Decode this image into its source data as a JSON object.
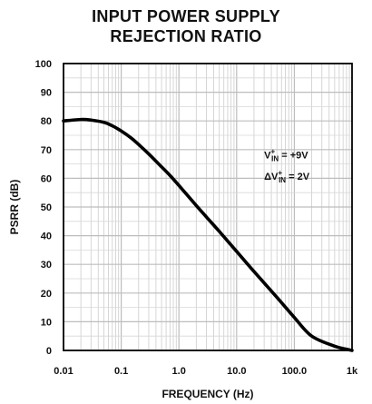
{
  "chart_data": {
    "type": "line",
    "title_lines": [
      "INPUT POWER SUPPLY",
      "REJECTION RATIO"
    ],
    "xlabel": "FREQUENCY (Hz)",
    "ylabel": "PSRR (dB)",
    "x_scale": "log",
    "xlim": [
      0.01,
      1000
    ],
    "ylim": [
      0,
      100
    ],
    "x_ticks": [
      {
        "value": 0.01,
        "label": "0.01"
      },
      {
        "value": 0.1,
        "label": "0.1"
      },
      {
        "value": 1,
        "label": "1.0"
      },
      {
        "value": 10,
        "label": "10.0"
      },
      {
        "value": 100,
        "label": "100.0"
      },
      {
        "value": 1000,
        "label": "1k"
      }
    ],
    "y_ticks": [
      {
        "value": 0,
        "label": "0"
      },
      {
        "value": 10,
        "label": "10"
      },
      {
        "value": 20,
        "label": "20"
      },
      {
        "value": 30,
        "label": "30"
      },
      {
        "value": 40,
        "label": "40"
      },
      {
        "value": 50,
        "label": "50"
      },
      {
        "value": 60,
        "label": "60"
      },
      {
        "value": 70,
        "label": "70"
      },
      {
        "value": 80,
        "label": "80"
      },
      {
        "value": 90,
        "label": "90"
      },
      {
        "value": 100,
        "label": "100"
      }
    ],
    "grid": true,
    "series": [
      {
        "color": "#000000",
        "x": [
          0.01,
          0.02,
          0.03,
          0.05,
          0.07,
          0.1,
          0.15,
          0.2,
          0.3,
          0.5,
          0.7,
          1,
          2,
          3,
          5,
          10,
          20,
          50,
          100,
          200,
          500,
          1000
        ],
        "y": [
          80,
          80.5,
          80.3,
          79.5,
          78.3,
          76.5,
          74,
          71.8,
          68.5,
          64,
          61,
          57.5,
          50.5,
          46.5,
          41.5,
          34.5,
          27.5,
          18.5,
          11.5,
          5,
          1.5,
          0
        ]
      }
    ],
    "annotations": [
      {
        "main": "V",
        "sup": "+",
        "sub": "IN",
        "suffix": " = +9V",
        "x": 30,
        "y": 67
      },
      {
        "prefix": "ΔV",
        "sup": "+",
        "sub": "IN",
        "suffix": " = 2V",
        "x": 30,
        "y": 59.5
      }
    ]
  }
}
